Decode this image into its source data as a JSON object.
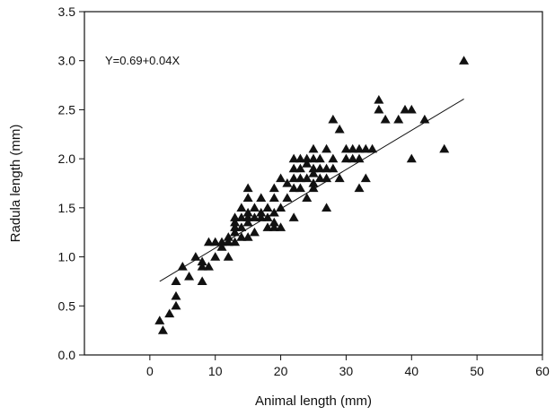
{
  "chart_data": {
    "type": "scatter",
    "title": "",
    "xlabel": "Animal length (mm)",
    "ylabel": "Radula length (mm)",
    "xlim": [
      -10,
      60
    ],
    "ylim": [
      0.0,
      3.5
    ],
    "xticks": [
      "0",
      "10",
      "20",
      "30",
      "40",
      "50",
      "60"
    ],
    "yticks": [
      "0.0",
      "0.5",
      "1.0",
      "1.5",
      "2.0",
      "2.5",
      "3.0",
      "3.5"
    ],
    "grid": false,
    "legend": "none",
    "marker": "triangle",
    "marker_color": "#111111",
    "annotation": "Y=0.69+0.04X",
    "regression": {
      "intercept": 0.69,
      "slope": 0.04,
      "x_range": [
        1.5,
        48
      ]
    },
    "points": [
      [
        1.5,
        0.35
      ],
      [
        2,
        0.25
      ],
      [
        3,
        0.42
      ],
      [
        4,
        0.5
      ],
      [
        4,
        0.6
      ],
      [
        4,
        0.75
      ],
      [
        5,
        0.9
      ],
      [
        6,
        0.8
      ],
      [
        7,
        1.0
      ],
      [
        8,
        0.75
      ],
      [
        8,
        0.9
      ],
      [
        8,
        0.95
      ],
      [
        9,
        0.9
      ],
      [
        9,
        1.15
      ],
      [
        10,
        1.0
      ],
      [
        10,
        1.15
      ],
      [
        11,
        1.1
      ],
      [
        11,
        1.15
      ],
      [
        12,
        1.0
      ],
      [
        12,
        1.15
      ],
      [
        12,
        1.2
      ],
      [
        13,
        1.15
      ],
      [
        13,
        1.25
      ],
      [
        13,
        1.3
      ],
      [
        13,
        1.4
      ],
      [
        13,
        1.35
      ],
      [
        14,
        1.2
      ],
      [
        14,
        1.3
      ],
      [
        14,
        1.4
      ],
      [
        14,
        1.5
      ],
      [
        15,
        1.2
      ],
      [
        15,
        1.35
      ],
      [
        15,
        1.4
      ],
      [
        15,
        1.45
      ],
      [
        15,
        1.6
      ],
      [
        15,
        1.7
      ],
      [
        16,
        1.25
      ],
      [
        16,
        1.4
      ],
      [
        16,
        1.5
      ],
      [
        17,
        1.4
      ],
      [
        17,
        1.45
      ],
      [
        17,
        1.6
      ],
      [
        18,
        1.3
      ],
      [
        18,
        1.4
      ],
      [
        18,
        1.5
      ],
      [
        19,
        1.3
      ],
      [
        19,
        1.35
      ],
      [
        19,
        1.45
      ],
      [
        19,
        1.6
      ],
      [
        19,
        1.7
      ],
      [
        20,
        1.3
      ],
      [
        20,
        1.5
      ],
      [
        20,
        1.8
      ],
      [
        21,
        1.6
      ],
      [
        21,
        1.75
      ],
      [
        22,
        1.7
      ],
      [
        22,
        1.8
      ],
      [
        22,
        1.9
      ],
      [
        22,
        2.0
      ],
      [
        22,
        1.4
      ],
      [
        23,
        1.7
      ],
      [
        23,
        1.8
      ],
      [
        23,
        1.9
      ],
      [
        23,
        2.0
      ],
      [
        24,
        1.6
      ],
      [
        24,
        1.8
      ],
      [
        24,
        1.95
      ],
      [
        24,
        2.0
      ],
      [
        25,
        1.7
      ],
      [
        25,
        1.75
      ],
      [
        25,
        1.85
      ],
      [
        25,
        1.9
      ],
      [
        25,
        2.0
      ],
      [
        25,
        2.1
      ],
      [
        26,
        1.8
      ],
      [
        26,
        1.9
      ],
      [
        26,
        2.0
      ],
      [
        27,
        1.5
      ],
      [
        27,
        1.8
      ],
      [
        27,
        1.9
      ],
      [
        27,
        2.1
      ],
      [
        28,
        1.9
      ],
      [
        28,
        2.0
      ],
      [
        28,
        2.4
      ],
      [
        29,
        1.8
      ],
      [
        29,
        2.3
      ],
      [
        30,
        2.0
      ],
      [
        30,
        2.1
      ],
      [
        31,
        2.0
      ],
      [
        31,
        2.1
      ],
      [
        32,
        1.7
      ],
      [
        32,
        2.0
      ],
      [
        32,
        2.1
      ],
      [
        33,
        1.8
      ],
      [
        33,
        2.1
      ],
      [
        34,
        2.1
      ],
      [
        35,
        2.5
      ],
      [
        35,
        2.6
      ],
      [
        36,
        2.4
      ],
      [
        38,
        2.4
      ],
      [
        39,
        2.5
      ],
      [
        40,
        2.0
      ],
      [
        40,
        2.5
      ],
      [
        42,
        2.4
      ],
      [
        45,
        2.1
      ],
      [
        48,
        3.0
      ]
    ]
  }
}
